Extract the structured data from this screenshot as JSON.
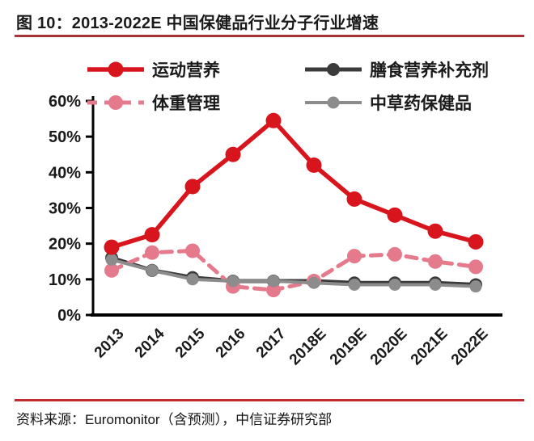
{
  "page": {
    "title": "图 10：2013-2022E 中国保健品行业分子行业增速",
    "source_note": "资料来源：Euromonitor（含预测），中信证券研究部"
  },
  "colors": {
    "title_rule": "#A93438",
    "footer_rule": "#C12B30",
    "axis": "#000000",
    "text": "#1A1A1A",
    "background": "#FFFFFF"
  },
  "chart_data": {
    "type": "line",
    "title": "2013-2022E 中国保健品行业分子行业增速",
    "categories": [
      "2013",
      "2014",
      "2015",
      "2016",
      "2017",
      "2018E",
      "2019E",
      "2020E",
      "2021E",
      "2022E"
    ],
    "ylim": [
      0,
      60
    ],
    "y_tick_labels": [
      "0%",
      "10%",
      "20%",
      "30%",
      "40%",
      "50%",
      "60%"
    ],
    "grid": false,
    "legend_position": "top-left two-column",
    "series": [
      {
        "name": "运动营养",
        "color": "#D8151D",
        "style": "solid",
        "line_width": 5.5,
        "marker_radius": 9.5,
        "values": [
          19,
          22.5,
          36,
          45,
          54.5,
          42,
          32.5,
          28,
          23.5,
          20.5
        ]
      },
      {
        "name": "膳食营养补充剂",
        "color": "#3B3B3B",
        "style": "solid",
        "line_width": 5,
        "marker_radius": 8,
        "values": [
          16,
          12.5,
          10.5,
          9.5,
          9.5,
          9.5,
          9,
          9,
          9,
          8.5
        ]
      },
      {
        "name": "体重管理",
        "color": "#E57A8D",
        "style": "dashed",
        "line_width": 5,
        "marker_radius": 9,
        "values": [
          12.5,
          17.5,
          18,
          8,
          7,
          9.5,
          16.5,
          17,
          15,
          13.5
        ]
      },
      {
        "name": "中草药保健品",
        "color": "#8C8C8C",
        "style": "solid",
        "line_width": 4,
        "marker_radius": 7.5,
        "values": [
          15.5,
          12.5,
          10,
          9.5,
          9.5,
          9,
          8.5,
          8.5,
          8.5,
          8
        ]
      }
    ]
  }
}
